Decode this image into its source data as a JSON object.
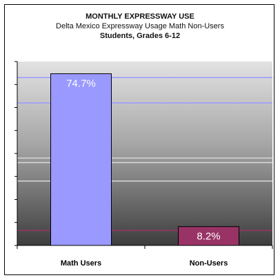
{
  "chart_data": {
    "type": "bar",
    "title": "MONTHLY EXPRESSWAY USE",
    "subtitle": "Delta Mexico Expressway Usage Math Non-Users",
    "subtitle2": "Students, Grades 6-12",
    "categories": [
      "Math Users",
      "Non-Users"
    ],
    "values": [
      74.7,
      8.2
    ],
    "value_labels": [
      "74.7%",
      "8.2%"
    ],
    "bar_colors": [
      "#9999ff",
      "#993366"
    ],
    "ylim": [
      0,
      80
    ],
    "xlabel": "",
    "ylabel": "",
    "reference_lines": [
      {
        "value": 73,
        "color": "#9999ff"
      },
      {
        "value": 62,
        "color": "#9999ff"
      },
      {
        "value": 38,
        "color": "#d9d9d9"
      },
      {
        "value": 36,
        "color": "#d9d9d9"
      },
      {
        "value": 28,
        "color": "#d9d9d9"
      },
      {
        "value": 6.5,
        "color": "#993366"
      }
    ],
    "grid": false,
    "background": "gradient light-gray to dark-gray"
  }
}
